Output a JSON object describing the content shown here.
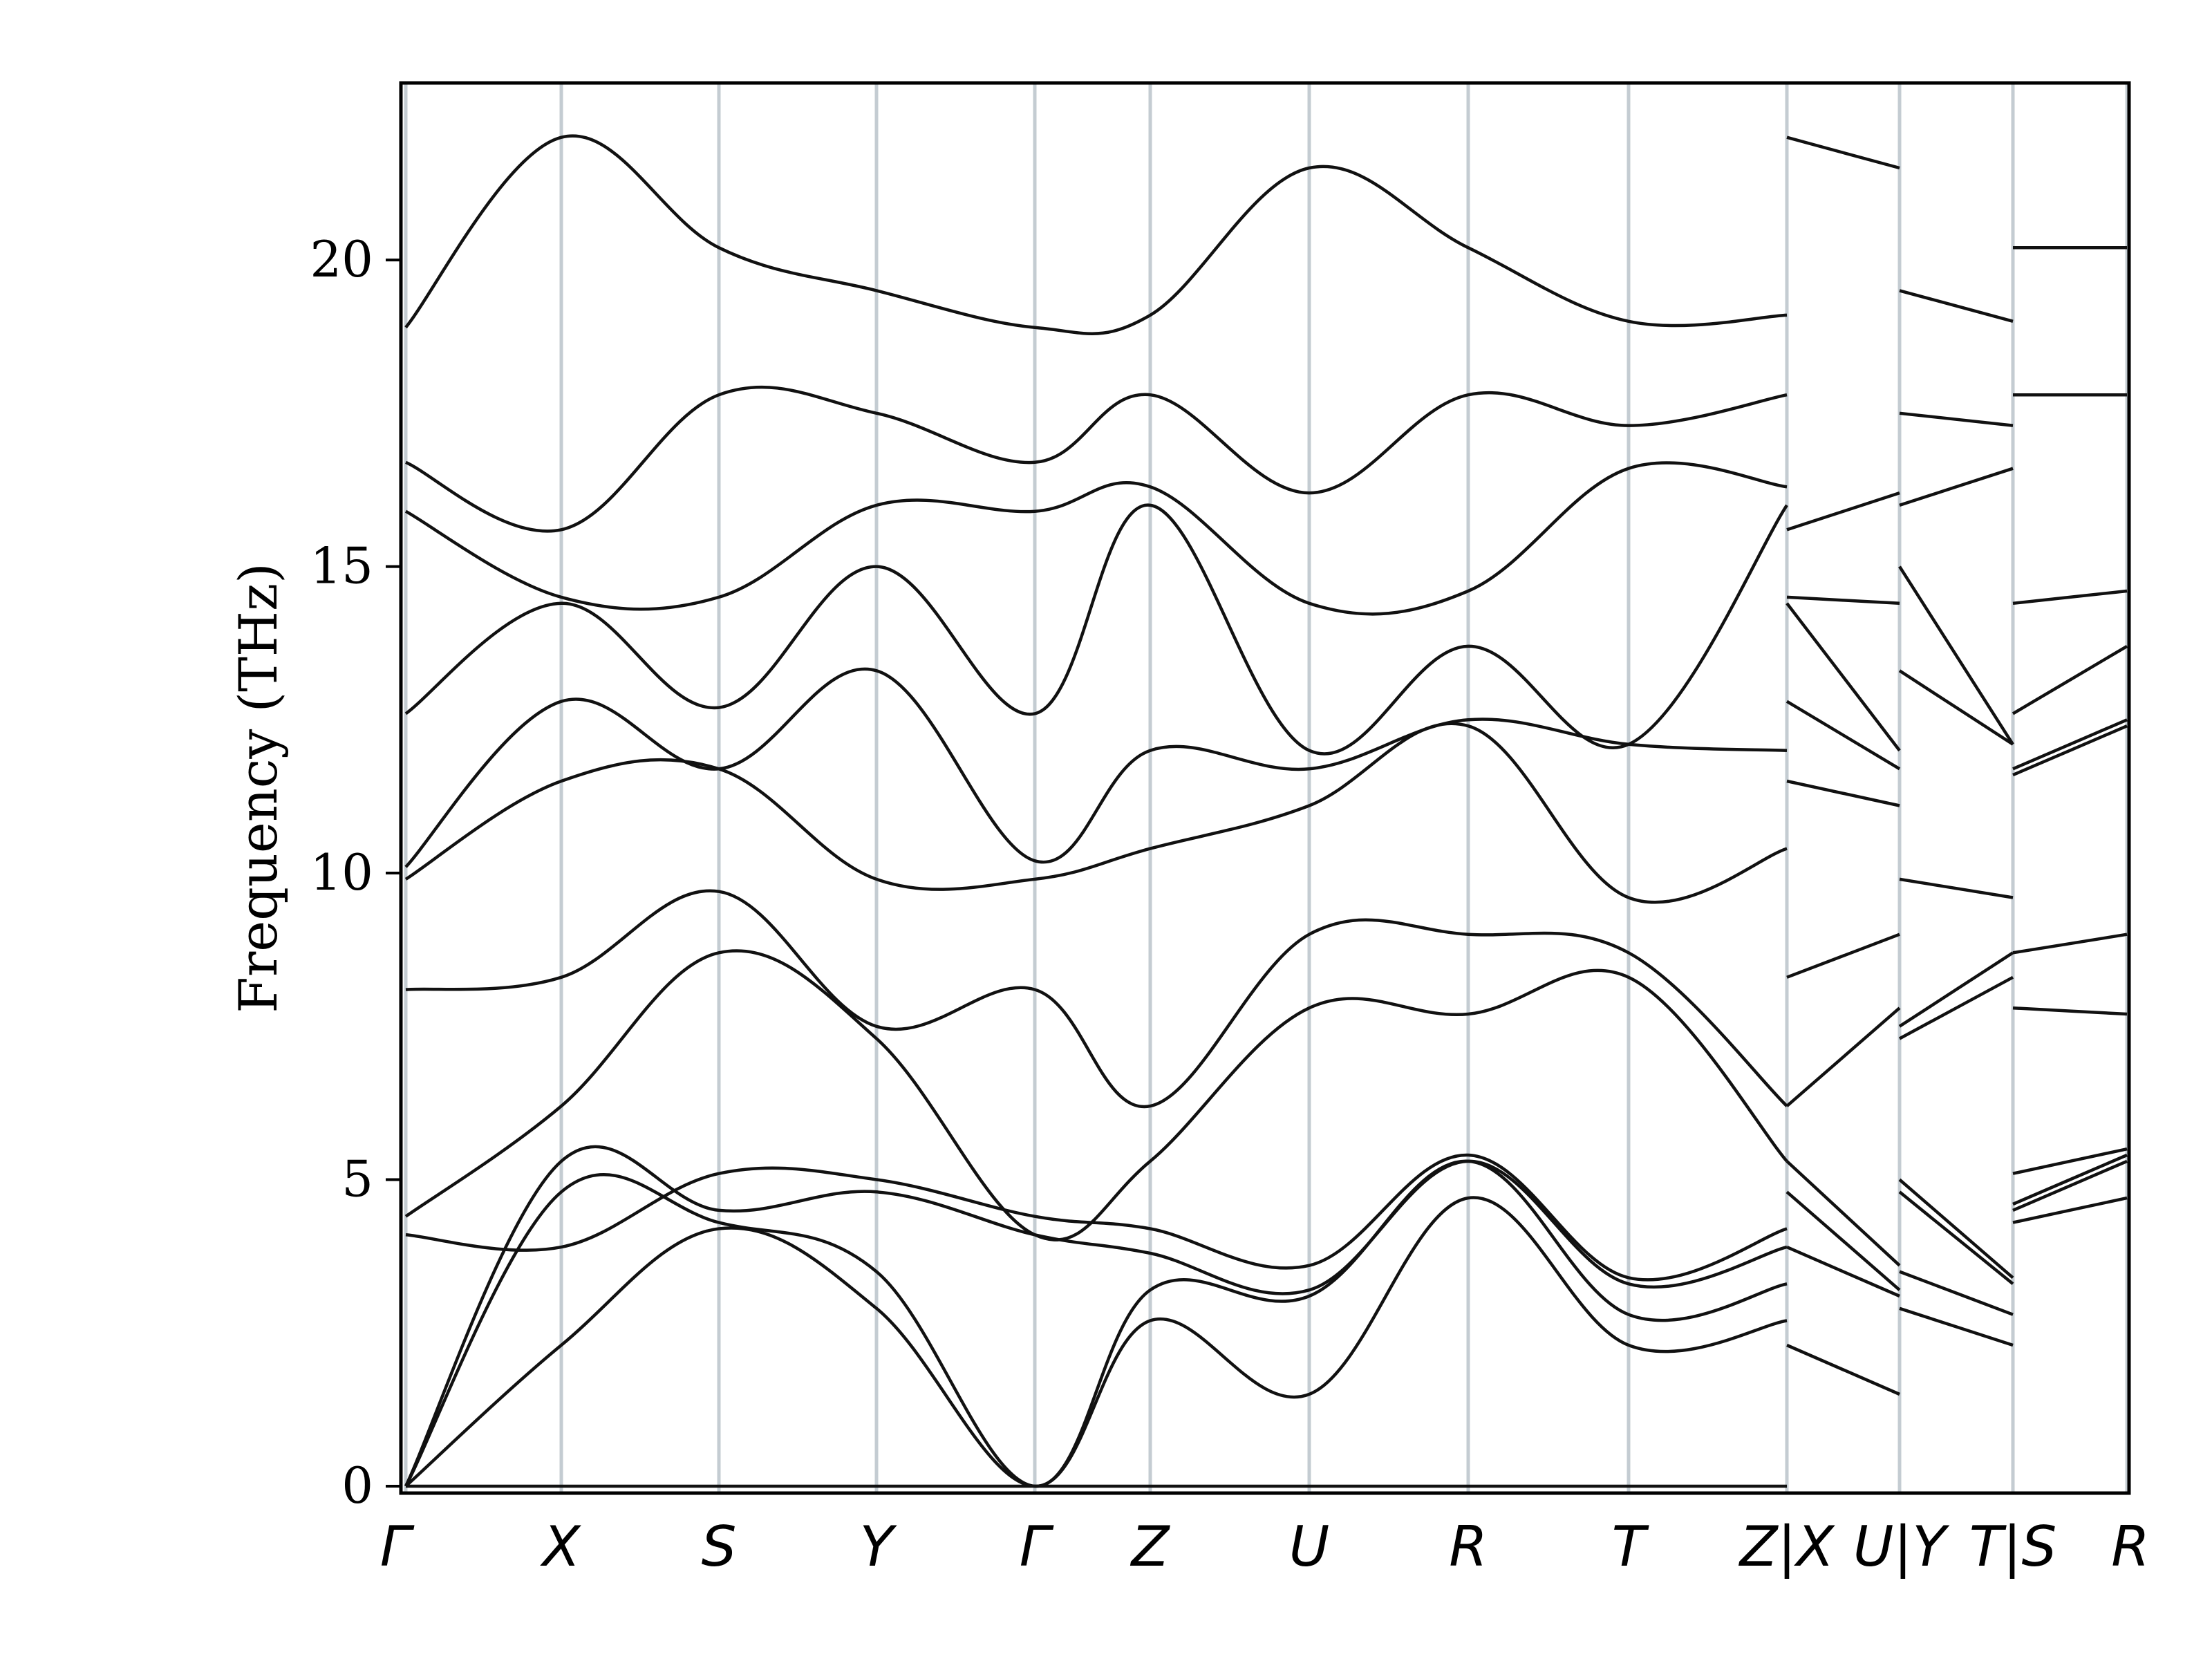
{
  "chart_data": {
    "type": "line",
    "title": "",
    "xlabel": "",
    "ylabel": "Frequency (THz)",
    "ylim": [
      0,
      23
    ],
    "yticks": [
      0,
      5,
      10,
      15,
      20
    ],
    "grid": false,
    "x_ticks": [
      "Γ",
      "X",
      "S",
      "Y",
      "Γ",
      "Z",
      "U",
      "R",
      "T",
      "Z|X",
      "U|Y",
      "T|S",
      "R"
    ],
    "segments": [
      {
        "path": [
          "Γ",
          "X",
          "S",
          "Y",
          "Γ",
          "Z",
          "U",
          "R",
          "T",
          "Z"
        ],
        "bands": [
          [
            0,
            0,
            0,
            0,
            0,
            0,
            0,
            0,
            0,
            0
          ],
          [
            0,
            2.3,
            4.2,
            2.9,
            0,
            2.7,
            1.5,
            4.7,
            2.3,
            2.7
          ],
          [
            0,
            4.8,
            4.3,
            3.5,
            0,
            3.2,
            3.1,
            5.3,
            2.8,
            3.3
          ],
          [
            0,
            5.3,
            4.5,
            4.8,
            4.1,
            3.8,
            3.2,
            5.3,
            3.3,
            3.9
          ],
          [
            4.1,
            3.9,
            5.1,
            5.0,
            4.4,
            4.2,
            3.6,
            5.4,
            3.4,
            4.2
          ],
          [
            4.4,
            6.2,
            8.7,
            7.3,
            4.1,
            5.3,
            7.8,
            7.7,
            8.3,
            5.3
          ],
          [
            8.1,
            8.3,
            9.7,
            7.5,
            8.1,
            6.2,
            9.0,
            9.0,
            8.7,
            6.2
          ],
          [
            9.9,
            11.5,
            11.7,
            9.9,
            9.9,
            10.4,
            11.1,
            12.4,
            9.6,
            10.4
          ],
          [
            10.1,
            12.8,
            11.7,
            13.3,
            10.2,
            12.0,
            11.7,
            12.5,
            12.1,
            12.0
          ],
          [
            12.6,
            14.4,
            12.7,
            15.0,
            12.6,
            16.0,
            12.0,
            13.7,
            12.1,
            16.0
          ],
          [
            15.9,
            14.5,
            14.5,
            16.0,
            15.9,
            16.3,
            14.4,
            14.6,
            16.6,
            16.3
          ],
          [
            16.7,
            15.6,
            17.8,
            17.5,
            16.7,
            17.8,
            16.2,
            17.8,
            17.3,
            17.8
          ],
          [
            18.9,
            22.0,
            20.2,
            19.5,
            18.9,
            19.1,
            21.5,
            20.2,
            19.0,
            19.1
          ]
        ]
      },
      {
        "path": [
          "X",
          "U"
        ],
        "bands": [
          [
            2.3,
            1.5
          ],
          [
            3.9,
            3.1
          ],
          [
            4.8,
            3.2
          ],
          [
            5.3,
            3.6
          ],
          [
            6.2,
            7.8
          ],
          [
            8.3,
            9.0
          ],
          [
            11.5,
            11.1
          ],
          [
            12.8,
            11.7
          ],
          [
            14.4,
            12.0
          ],
          [
            14.5,
            14.4
          ],
          [
            15.6,
            16.2
          ],
          [
            22.0,
            21.5
          ]
        ]
      },
      {
        "path": [
          "Y",
          "T"
        ],
        "bands": [
          [
            2.9,
            2.3
          ],
          [
            3.5,
            2.8
          ],
          [
            4.8,
            3.3
          ],
          [
            5.0,
            3.4
          ],
          [
            7.3,
            8.3
          ],
          [
            7.5,
            8.7
          ],
          [
            9.9,
            9.6
          ],
          [
            13.3,
            12.1
          ],
          [
            15.0,
            12.1
          ],
          [
            16.0,
            16.6
          ],
          [
            17.5,
            17.3
          ],
          [
            19.5,
            19.0
          ]
        ]
      },
      {
        "path": [
          "S",
          "R"
        ],
        "bands": [
          [
            4.3,
            4.7
          ],
          [
            4.5,
            5.3
          ],
          [
            4.6,
            5.4
          ],
          [
            5.1,
            5.5
          ],
          [
            7.8,
            7.7
          ],
          [
            8.7,
            9.0
          ],
          [
            11.6,
            12.4
          ],
          [
            11.7,
            12.5
          ],
          [
            12.6,
            13.7
          ],
          [
            14.4,
            14.6
          ],
          [
            17.8,
            17.8
          ],
          [
            20.2,
            20.2
          ]
        ]
      }
    ]
  }
}
